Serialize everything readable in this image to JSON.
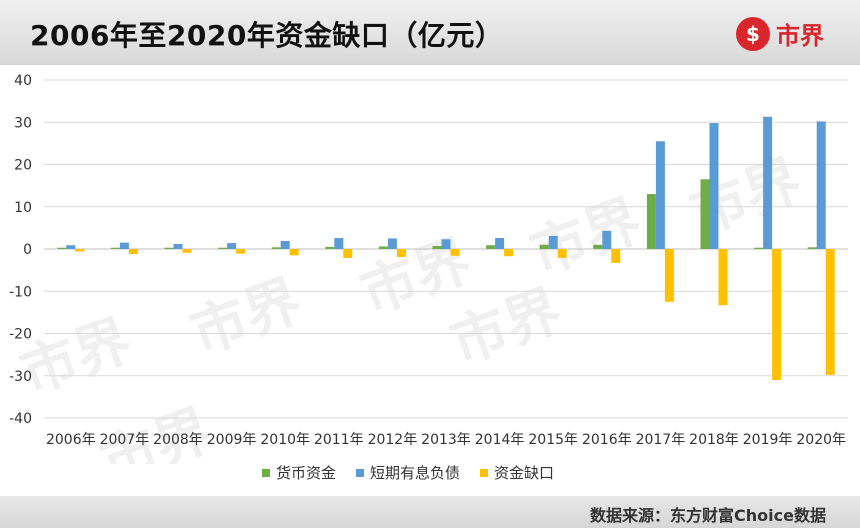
{
  "header": {
    "title": "2006年至2020年资金缺口（亿元）"
  },
  "logo": {
    "mark": "$",
    "text": "市界",
    "watermark": "市界"
  },
  "footer": {
    "source": "数据来源：东方财富Choice数据"
  },
  "chart_data": {
    "type": "bar",
    "title": "2006年至2020年资金缺口（亿元）",
    "xlabel": "",
    "ylabel": "",
    "categories": [
      "2006年",
      "2007年",
      "2008年",
      "2009年",
      "2010年",
      "2011年",
      "2012年",
      "2013年",
      "2014年",
      "2015年",
      "2016年",
      "2017年",
      "2018年",
      "2019年",
      "2020年"
    ],
    "ylim": [
      -40,
      40
    ],
    "yticks": [
      40,
      30,
      20,
      10,
      0,
      -10,
      -20,
      -30,
      -40
    ],
    "grid": true,
    "legend_position": "bottom",
    "series": [
      {
        "name": "货币资金",
        "color": "#70ad47",
        "values": [
          0.3,
          0.3,
          0.3,
          0.3,
          0.4,
          0.5,
          0.6,
          0.7,
          0.9,
          1.0,
          1.0,
          13.0,
          16.5,
          0.3,
          0.4
        ]
      },
      {
        "name": "短期有息负债",
        "color": "#5b9bd5",
        "values": [
          0.9,
          1.5,
          1.2,
          1.4,
          1.9,
          2.6,
          2.5,
          2.3,
          2.6,
          3.1,
          4.3,
          25.5,
          29.8,
          31.3,
          30.2
        ]
      },
      {
        "name": "资金缺口",
        "color": "#ffc000",
        "values": [
          -0.6,
          -1.2,
          -0.9,
          -1.1,
          -1.5,
          -2.1,
          -1.9,
          -1.6,
          -1.7,
          -2.1,
          -3.3,
          -12.5,
          -13.3,
          -31.0,
          -29.8
        ]
      }
    ]
  }
}
